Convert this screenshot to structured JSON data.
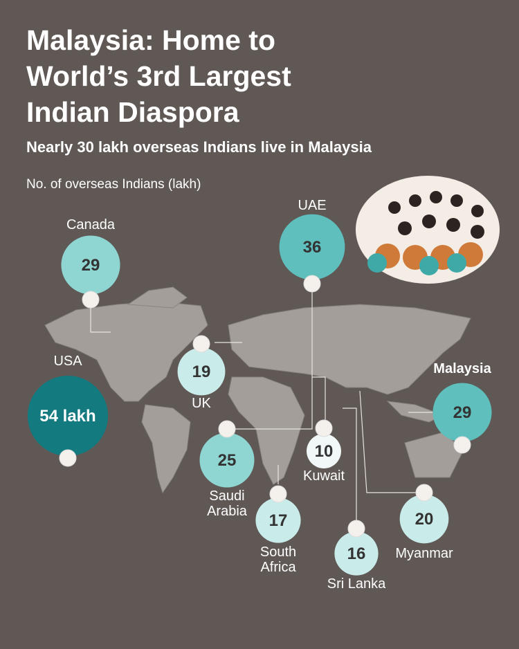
{
  "chart_data": {
    "type": "bubble",
    "title": "Malaysia: Home to World’s 3rd Largest Indian Diaspora",
    "subtitle": "Nearly 30 lakh overseas Indians live in Malaysia",
    "value_label": "No. of overseas Indians (lakh)",
    "categories": [
      "Canada",
      "UAE",
      "USA",
      "UK",
      "Malaysia",
      "Saudi Arabia",
      "Kuwait",
      "South Africa",
      "Sri Lanka",
      "Myanmar"
    ],
    "values": [
      29,
      36,
      54,
      19,
      29,
      25,
      10,
      17,
      16,
      20
    ],
    "value_labels": [
      "29",
      "36",
      "54 lakh",
      "19",
      "29",
      "25",
      "10",
      "17",
      "16",
      "20"
    ],
    "colors": [
      "#8fd6d3",
      "#5fbfbd",
      "#137a80",
      "#c9ecea",
      "#5fbfbd",
      "#8fd6d3",
      "#f2f8f8",
      "#c9ecea",
      "#c9ecea",
      "#c9ecea"
    ]
  }
}
